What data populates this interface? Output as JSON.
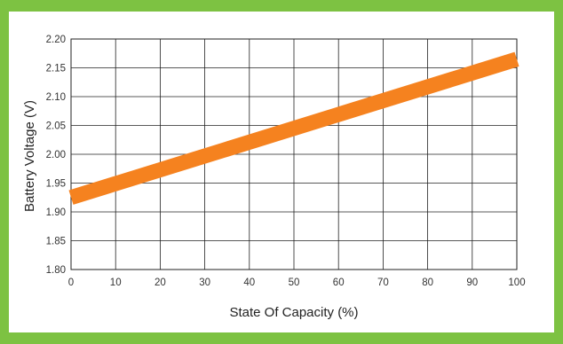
{
  "colors": {
    "frame": "#7dc242",
    "line": "#f5821f",
    "grid": "#222222"
  },
  "chart_data": {
    "type": "line",
    "title": "",
    "xlabel": "State Of Capacity (%)",
    "ylabel": "Battery Voltage (V)",
    "xlim": [
      0,
      100
    ],
    "ylim": [
      1.8,
      2.2
    ],
    "xticks": [
      "0",
      "10",
      "20",
      "30",
      "40",
      "50",
      "60",
      "70",
      "80",
      "90",
      "100"
    ],
    "yticks": [
      "1.80",
      "1.85",
      "1.90",
      "1.95",
      "2.00",
      "2.05",
      "2.10",
      "2.15",
      "2.20"
    ],
    "grid": true,
    "series": [
      {
        "x": [
          0,
          100
        ],
        "y": [
          1.925,
          2.165
        ]
      }
    ]
  }
}
